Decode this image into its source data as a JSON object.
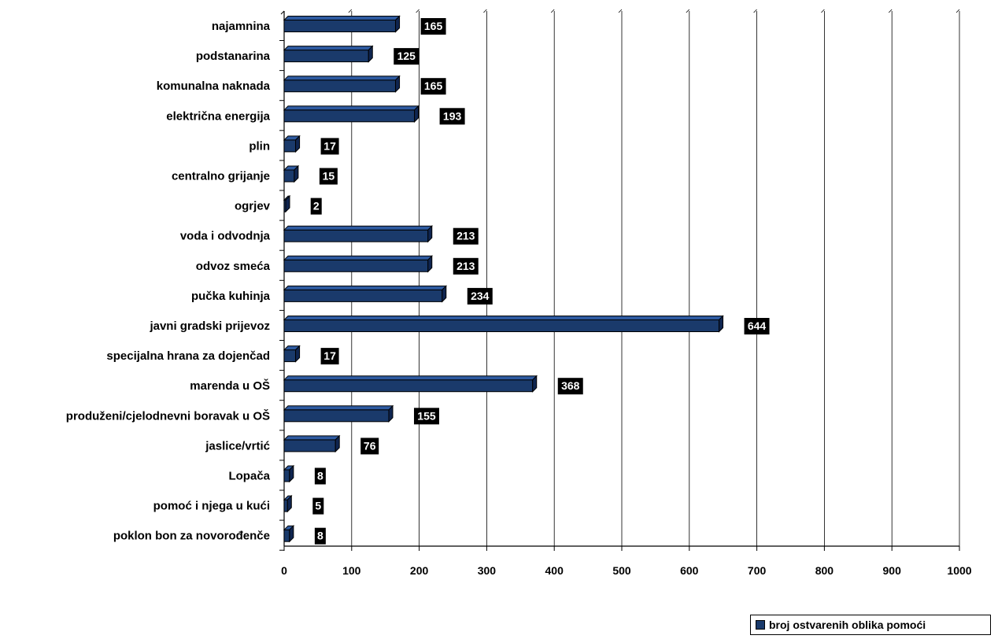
{
  "chart_data": {
    "type": "bar",
    "orientation": "horizontal",
    "categories": [
      "najamnina",
      "podstanarina",
      "komunalna naknada",
      "električna energija",
      "plin",
      "centralno grijanje",
      "ogrjev",
      "voda i odvodnja",
      "odvoz smeća",
      "pučka kuhinja",
      "javni gradski prijevoz",
      "specijalna hrana za dojenčad",
      "marenda u OŠ",
      "produženi/cjelodnevni boravak u OŠ",
      "jaslice/vrtić",
      "Lopača",
      "pomoć i njega u kući",
      "poklon bon za novorođenče"
    ],
    "series": [
      {
        "name": "broj ostvarenih oblika pomoći",
        "values": [
          165,
          125,
          165,
          193,
          17,
          15,
          2,
          213,
          213,
          234,
          644,
          17,
          368,
          155,
          76,
          8,
          5,
          8
        ]
      }
    ],
    "xlim": [
      0,
      1000
    ],
    "x_ticks": [
      0,
      100,
      200,
      300,
      400,
      500,
      600,
      700,
      800,
      900,
      1000
    ],
    "grid": "vertical",
    "legend_position": "bottom-right",
    "bar_color": "#1a3a6b",
    "label_bg_color": "#000000",
    "label_text_color": "#ffffff"
  }
}
